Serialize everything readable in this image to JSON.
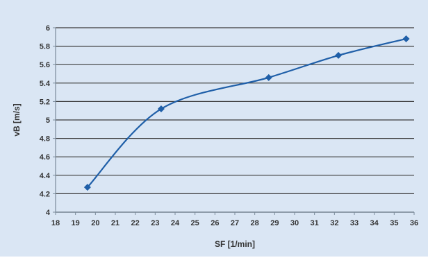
{
  "colors": {
    "background": "#dae6f4",
    "plot_area": "#dae6f4",
    "grid": "#3a3a3a",
    "axis": "#7a8a9a",
    "series": "#1f5fa8"
  },
  "chart_data": {
    "type": "scatter",
    "xlabel": "SF [1/min]",
    "ylabel": "vB [m/s]",
    "xlim": [
      18,
      36
    ],
    "ylim": [
      4,
      6
    ],
    "x_ticks": [
      "18",
      "19",
      "20",
      "21",
      "22",
      "23",
      "24",
      "25",
      "26",
      "27",
      "28",
      "29",
      "30",
      "31",
      "32",
      "33",
      "34",
      "35",
      "36"
    ],
    "y_ticks": [
      "4",
      "4.2",
      "4.4",
      "4.6",
      "4.8",
      "5",
      "5.2",
      "5.4",
      "5.6",
      "5.8",
      "6"
    ],
    "grid": "horizontal",
    "legend": "none",
    "series": [
      {
        "marker": "diamond",
        "line": "smooth",
        "points": [
          {
            "x": 19.6,
            "y": 4.27
          },
          {
            "x": 23.3,
            "y": 5.12
          },
          {
            "x": 28.7,
            "y": 5.46
          },
          {
            "x": 32.2,
            "y": 5.7
          },
          {
            "x": 35.6,
            "y": 5.88
          }
        ]
      }
    ]
  }
}
